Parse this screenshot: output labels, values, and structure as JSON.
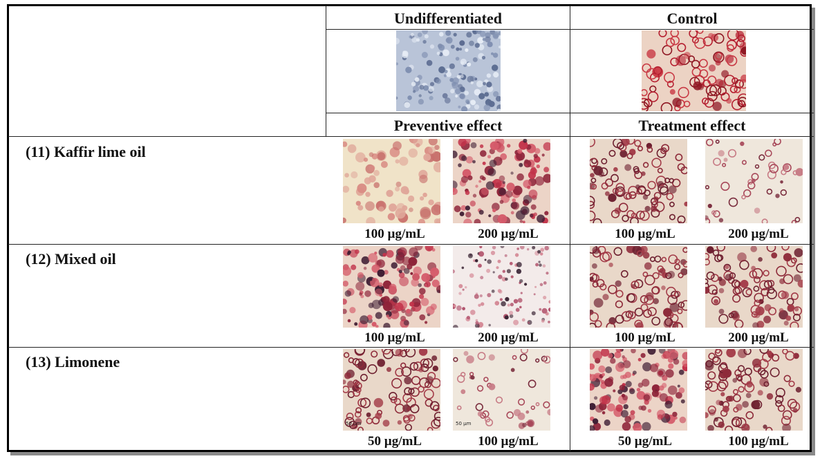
{
  "headers": {
    "undifferentiated": "Undifferentiated",
    "control": "Control",
    "preventive": "Preventive effect",
    "treatment": "Treatment effect"
  },
  "rows": [
    {
      "label": "(11) Kaffir lime oil",
      "captions": [
        "100 µg/mL",
        "200 µg/mL",
        "100 µg/mL",
        "200 µg/mL"
      ]
    },
    {
      "label": "(12) Mixed oil",
      "captions": [
        "100 µg/mL",
        "200 µg/mL",
        "100 µg/mL",
        "200 µg/mL"
      ]
    },
    {
      "label": "(13) Limonene",
      "captions": [
        "50 µg/mL",
        "100 µg/mL",
        "50 µg/mL",
        "100 µg/mL"
      ]
    }
  ],
  "scalebar": "50 µm",
  "colors": {
    "undifferentiated_bg": "#b7c3d8",
    "control_bg": "#e9c9b8",
    "stain": "#b3283a",
    "dark_stain": "#4a1f33"
  }
}
